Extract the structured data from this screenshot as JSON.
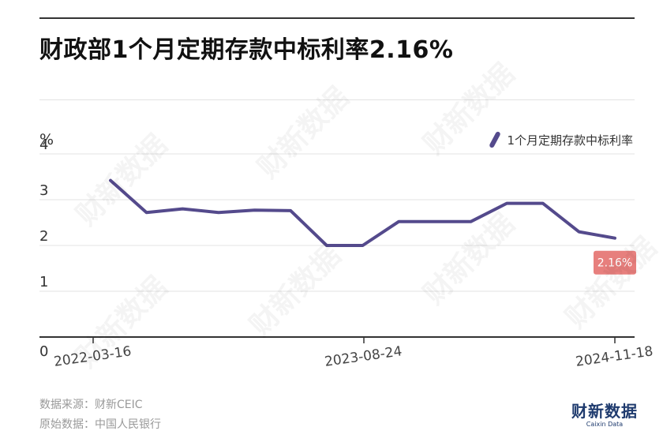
{
  "title": "财政部1个月定期存款中标利率2.16%",
  "footer": {
    "source": "数据来源：财新CEIC",
    "origin": "原始数据：中国人民银行"
  },
  "brand": {
    "name": "财新数据",
    "sub": "Caixin Data"
  },
  "watermark_text": "财新数据",
  "colors": {
    "line": "#544a8c",
    "callout": "#e77f7d",
    "grid": "#e3e3e3",
    "axis": "#333333"
  },
  "chart_data": {
    "type": "line",
    "ylabel": "%",
    "ylim": [
      0,
      4
    ],
    "yticks": [
      "0",
      "1",
      "2",
      "3",
      "4"
    ],
    "xticks": [
      "2022-03-16",
      "2023-08-24",
      "2024-11-18"
    ],
    "series": [
      {
        "name": "1个月定期存款中标利率",
        "values": [
          3.42,
          2.72,
          2.8,
          2.72,
          2.77,
          2.76,
          2.0,
          2.0,
          2.52,
          2.52,
          2.52,
          2.92,
          2.92,
          2.3,
          2.16
        ]
      }
    ],
    "end_label": "2.16%"
  }
}
